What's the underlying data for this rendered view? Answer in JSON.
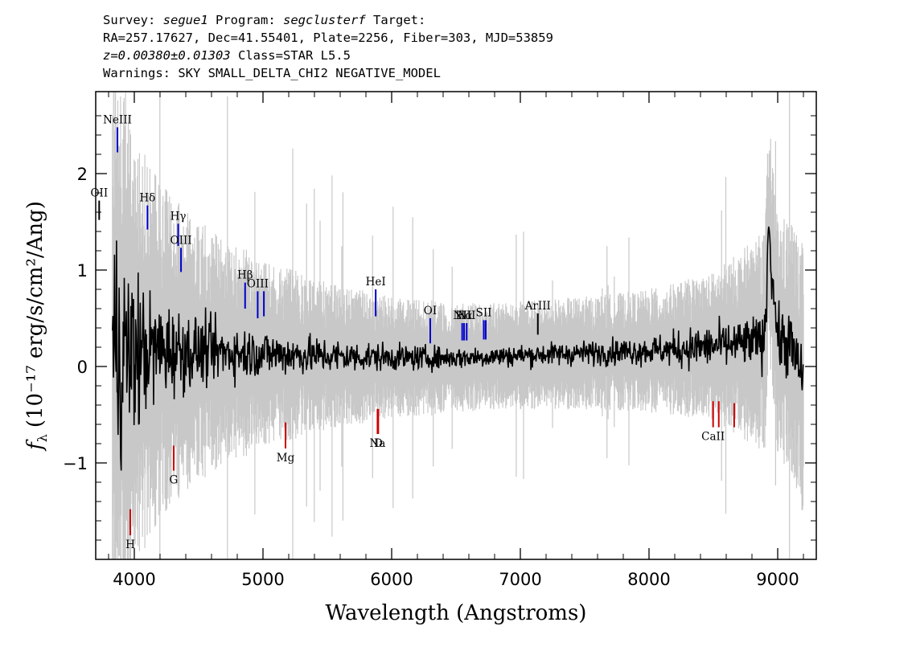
{
  "header": {
    "survey_label": "Survey:",
    "survey_value": "segue1",
    "program_label": "Program:",
    "program_value": "segclusterf",
    "target_label": "Target:",
    "line2": "RA=257.17627, Dec=41.55401, Plate=2256, Fiber=303, MJD=53859",
    "redshift": "z=0.00380±0.01303",
    "class": "Class=STAR L5.5",
    "warnings": "Warnings: SKY SMALL_DELTA_CHI2 NEGATIVE_MODEL"
  },
  "chart_data": {
    "type": "line",
    "xlabel": "Wavelength (Angstroms)",
    "ylabel_symbol": "f",
    "ylabel_sub": "λ",
    "ylabel_rest": "(10⁻¹⁷ erg/s/cm²/Ang)",
    "xlim": [
      3700,
      9300
    ],
    "ylim": [
      -2.0,
      2.85
    ],
    "x_ticks": [
      4000,
      5000,
      6000,
      7000,
      8000,
      9000
    ],
    "x_tick_labels": [
      "4000",
      "5000",
      "6000",
      "7000",
      "8000",
      "9000"
    ],
    "y_ticks": [
      -1,
      0,
      1,
      2
    ],
    "y_tick_labels": [
      "−1",
      "0",
      "1",
      "2"
    ],
    "grid": false,
    "series": [
      {
        "role": "flux",
        "color": "#000000",
        "x": [
          3800,
          3850,
          3900,
          3950,
          4000,
          4100,
          4200,
          4300,
          4400,
          4500,
          4700,
          4900,
          5100,
          5300,
          5500,
          5700,
          5900,
          6100,
          6300,
          6500,
          6700,
          6900,
          7100,
          7300,
          7500,
          7700,
          7900,
          8100,
          8300,
          8500,
          8700,
          8900,
          8930,
          9000,
          9100,
          9200
        ],
        "y": [
          0.12,
          0.18,
          0.15,
          0.12,
          0.14,
          0.16,
          0.17,
          0.17,
          0.16,
          0.16,
          0.15,
          0.14,
          0.13,
          0.12,
          0.11,
          0.1,
          0.1,
          0.09,
          0.09,
          0.09,
          0.1,
          0.11,
          0.12,
          0.13,
          0.14,
          0.15,
          0.16,
          0.17,
          0.19,
          0.21,
          0.23,
          0.26,
          1.4,
          0.3,
          0.22,
          -0.15
        ],
        "noise_amplitude": [
          1.2,
          1.2,
          1.1,
          1.0,
          0.9,
          0.6,
          0.5,
          0.45,
          0.4,
          0.35,
          0.28,
          0.25,
          0.22,
          0.2,
          0.18,
          0.16,
          0.14,
          0.13,
          0.12,
          0.11,
          0.11,
          0.11,
          0.11,
          0.12,
          0.12,
          0.13,
          0.14,
          0.16,
          0.2,
          0.22,
          0.24,
          0.28,
          0.3,
          0.3,
          0.35,
          0.35
        ]
      },
      {
        "role": "error",
        "color": "#c8c8c8",
        "x": [
          3800,
          3900,
          4000,
          4200,
          4400,
          4600,
          4800,
          5000,
          5500,
          6000,
          6500,
          7000,
          7500,
          8000,
          8500,
          8800,
          9000,
          9200
        ],
        "y": [
          2.6,
          2.0,
          1.6,
          1.25,
          1.05,
          0.9,
          0.8,
          0.7,
          0.55,
          0.45,
          0.4,
          0.4,
          0.42,
          0.45,
          0.55,
          0.75,
          0.9,
          1.0
        ]
      }
    ],
    "emission_lines": [
      {
        "label": "OII",
        "x": 3727,
        "y0": 1.72,
        "y1": 1.52,
        "color": "#000000"
      },
      {
        "label": "NeIII",
        "x": 3869,
        "y0": 2.48,
        "y1": 2.22,
        "color": "#0000cc"
      },
      {
        "label": "Hδ",
        "x": 4102,
        "y0": 1.67,
        "y1": 1.42,
        "color": "#0000cc"
      },
      {
        "label": "Hγ",
        "x": 4341,
        "y0": 1.48,
        "y1": 1.25,
        "color": "#0000cc"
      },
      {
        "label": "OIII",
        "x": 4363,
        "y0": 1.23,
        "y1": 0.98,
        "color": "#0000cc"
      },
      {
        "label": "Hβ",
        "x": 4861,
        "y0": 0.87,
        "y1": 0.6,
        "color": "#0000cc"
      },
      {
        "label": "OIII",
        "x": 4959,
        "y0": 0.78,
        "y1": 0.5,
        "color": "#0000cc"
      },
      {
        "label": "",
        "x": 5007,
        "y0": 0.78,
        "y1": 0.52,
        "color": "#0000cc"
      },
      {
        "label": "HeI",
        "x": 5876,
        "y0": 0.8,
        "y1": 0.52,
        "color": "#0000cc"
      },
      {
        "label": "OI",
        "x": 6300,
        "y0": 0.5,
        "y1": 0.24,
        "color": "#0000cc"
      },
      {
        "label": "NII",
        "x": 6548,
        "y0": 0.45,
        "y1": 0.27,
        "color": "#0000cc"
      },
      {
        "label": "Hα",
        "x": 6563,
        "y0": 0.45,
        "y1": 0.27,
        "color": "#0000cc"
      },
      {
        "label": "NII",
        "x": 6583,
        "y0": 0.45,
        "y1": 0.27,
        "color": "#0000cc"
      },
      {
        "label": "SII",
        "x": 6716,
        "y0": 0.48,
        "y1": 0.28,
        "color": "#0000cc"
      },
      {
        "label": "",
        "x": 6731,
        "y0": 0.48,
        "y1": 0.28,
        "color": "#0000cc"
      },
      {
        "label": "ArIII",
        "x": 7136,
        "y0": 0.55,
        "y1": 0.33,
        "color": "#000000"
      }
    ],
    "absorption_lines": [
      {
        "label": "H",
        "x": 3969,
        "y0": -1.48,
        "y1": -1.75,
        "color": "#cc0000"
      },
      {
        "label": "G",
        "x": 4306,
        "y0": -0.82,
        "y1": -1.08,
        "color": "#cc0000"
      },
      {
        "label": "Mg",
        "x": 5175,
        "y0": -0.58,
        "y1": -0.85,
        "color": "#cc0000"
      },
      {
        "label": "Na",
        "x": 5890,
        "y0": -0.44,
        "y1": -0.7,
        "color": "#cc0000"
      },
      {
        "label": "D",
        "x": 5896,
        "y0": -0.44,
        "y1": -0.7,
        "color": "#cc0000"
      },
      {
        "label": "CaII",
        "x": 8498,
        "y0": -0.36,
        "y1": -0.63,
        "color": "#cc0000"
      },
      {
        "label": "",
        "x": 8542,
        "y0": -0.36,
        "y1": -0.63,
        "color": "#cc0000"
      },
      {
        "label": "",
        "x": 8662,
        "y0": -0.38,
        "y1": -0.63,
        "color": "#cc0000"
      }
    ]
  }
}
